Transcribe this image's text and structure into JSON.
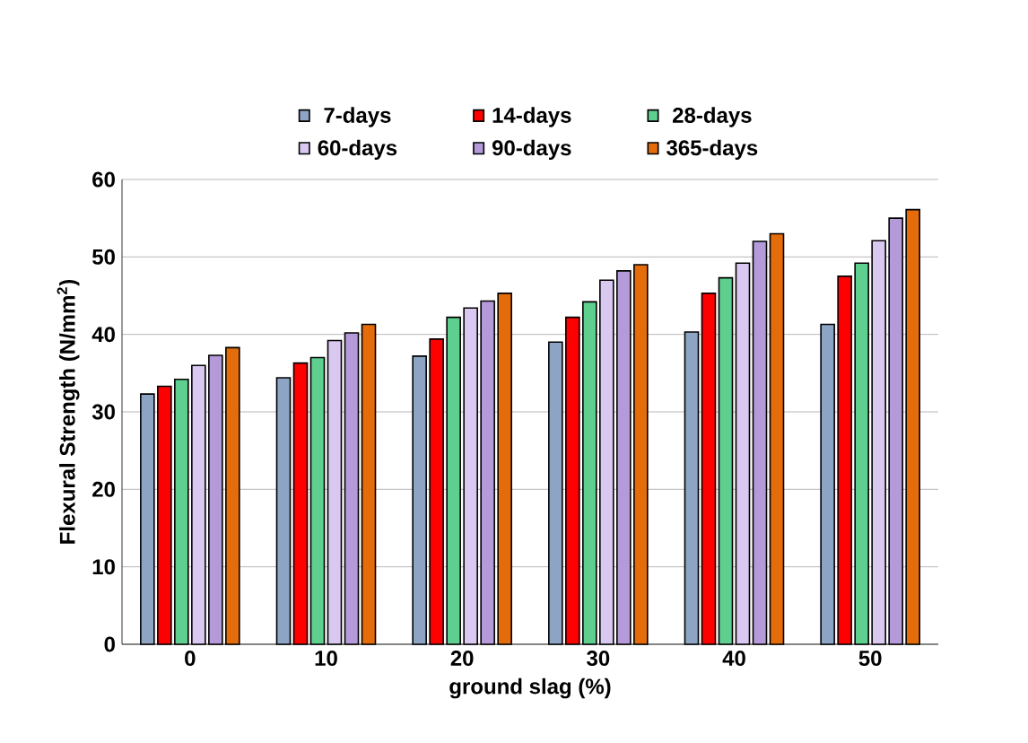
{
  "chart_data": {
    "type": "bar",
    "xlabel": "ground slag (%)",
    "ylabel": "Flexural  Strength (N/mm$^{2}$)",
    "categories": [
      "0",
      "10",
      "20",
      "30",
      "40",
      "50"
    ],
    "series": [
      {
        "name": "7-days",
        "color": "#8da4c4",
        "values": [
          32.3,
          34.4,
          37.2,
          39,
          40.3,
          41.3
        ]
      },
      {
        "name": "14-days",
        "color": "#ff0000",
        "values": [
          33.3,
          36.3,
          39.4,
          42.2,
          45.3,
          47.5
        ]
      },
      {
        "name": "28-days",
        "color": "#5fcf8f",
        "values": [
          34.2,
          37,
          42.2,
          44.2,
          47.3,
          49.2
        ]
      },
      {
        "name": "60-days",
        "color": "#d9c8f0",
        "values": [
          36,
          39.2,
          43.4,
          47,
          49.2,
          52.1
        ]
      },
      {
        "name": "90-days",
        "color": "#b49ad8",
        "values": [
          37.3,
          40.2,
          44.3,
          48.2,
          52,
          55
        ]
      },
      {
        "name": "365-days",
        "color": "#e46c0a",
        "values": [
          38.3,
          41.3,
          45.3,
          49,
          53,
          56.1
        ]
      }
    ],
    "ylim": [
      0,
      60
    ],
    "yticks": [
      0,
      10,
      20,
      30,
      40,
      50,
      60
    ],
    "grid": "y",
    "legend": "top"
  }
}
